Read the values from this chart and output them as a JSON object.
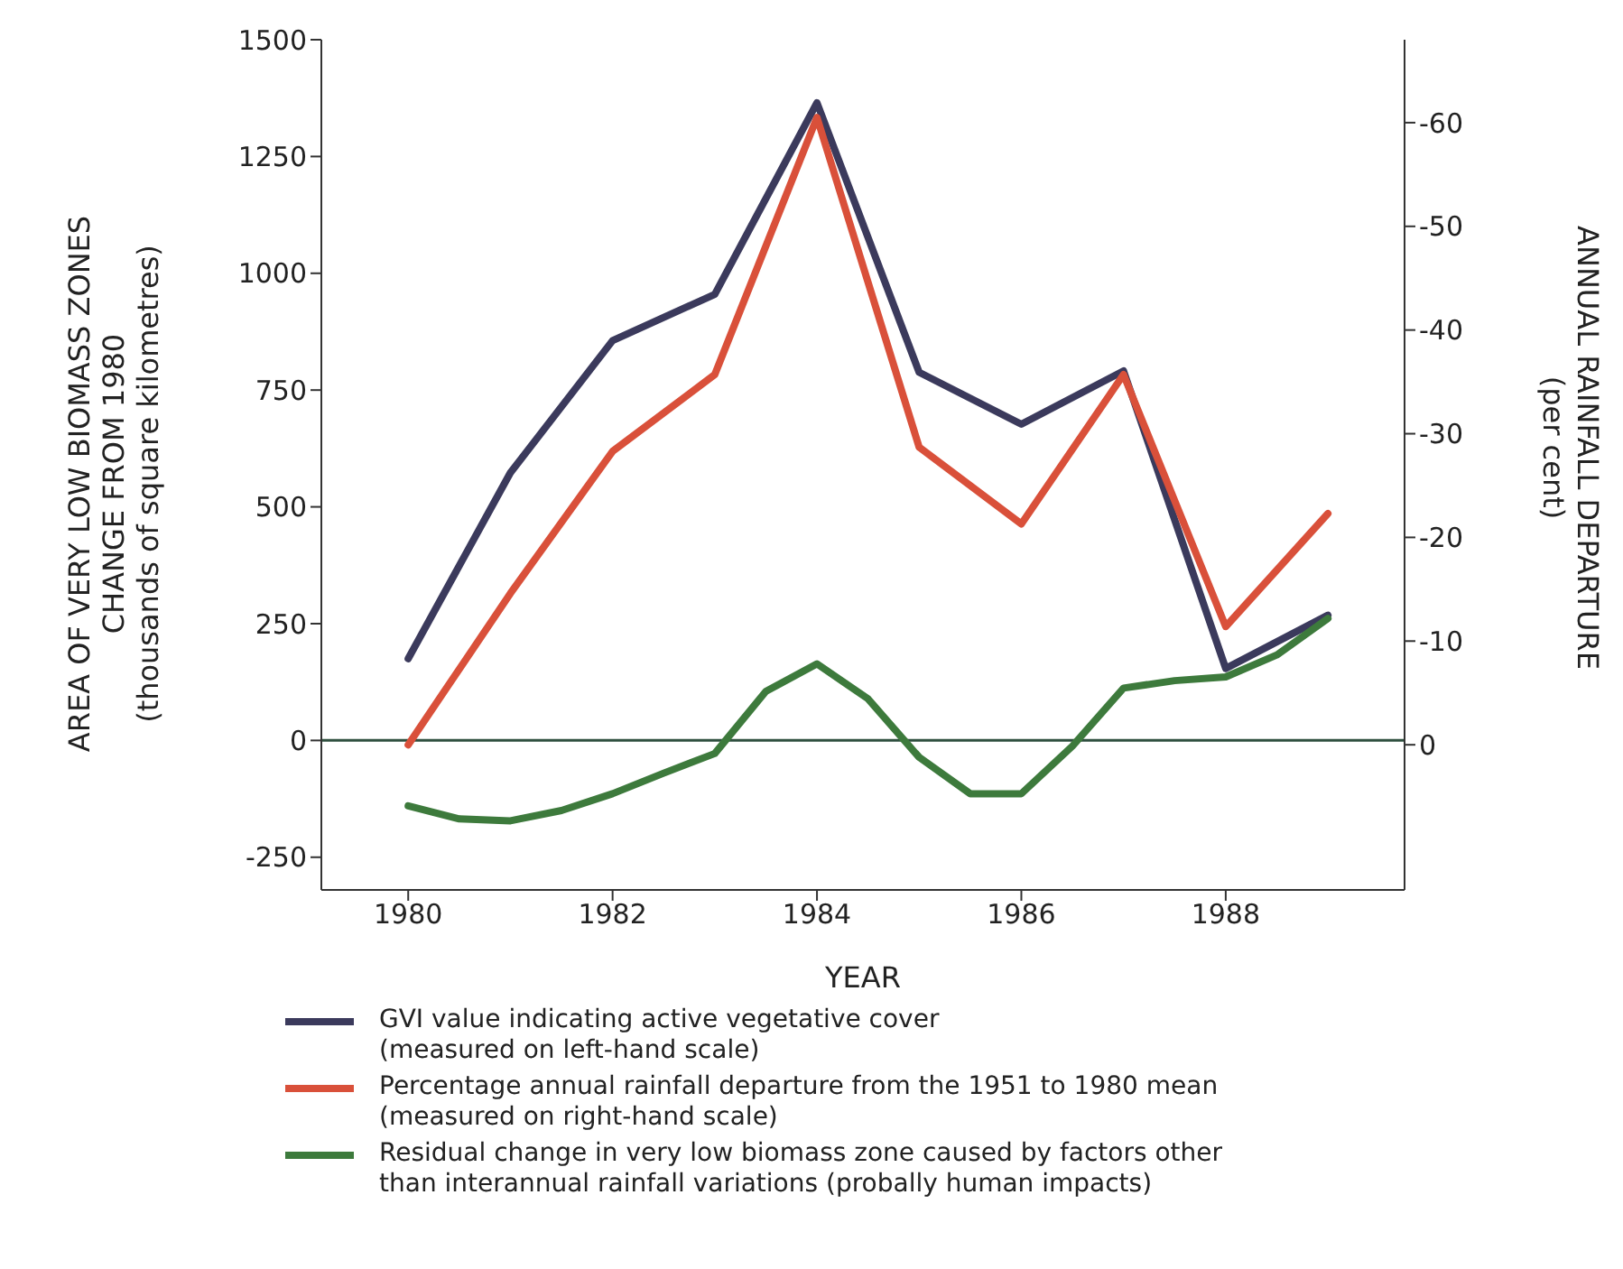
{
  "chart_data": {
    "type": "line",
    "xlabel": "YEAR",
    "ylabel": "AREA OF VERY LOW BIOMASS ZONES\nCHANGE FROM 1980\n(thousands of square kilometres)",
    "y2label": "ANNUAL RAINFALL DEPARTURE\n(per cent)",
    "x": [
      1980,
      1981,
      1982,
      1983,
      1984,
      1985,
      1986,
      1987,
      1988,
      1989
    ],
    "xlim": [
      1979.15,
      1989.75
    ],
    "xticks": [
      1980,
      1982,
      1984,
      1986,
      1988
    ],
    "ylim": [
      -320,
      1500
    ],
    "yticks": [
      -250,
      0,
      250,
      500,
      750,
      1000,
      1250,
      1500
    ],
    "y2lim": [
      14,
      -68
    ],
    "y2ticks": [
      0,
      -10,
      -20,
      -30,
      -40,
      -50,
      -60
    ],
    "series": [
      {
        "name": "GVI value indicating active vegetative cover\n(measured on left-hand scale)",
        "color": "#3b3a5c",
        "values": [
          175,
          573,
          856,
          955,
          1365,
          788,
          677,
          791,
          154,
          268
        ]
      },
      {
        "name": "Percentage annual rainfall departure from the 1951 to 1980 mean\n(measured on right-hand scale)",
        "color": "#d9503a",
        "axis": "y2",
        "values": [
          0,
          -14.6,
          -28.3,
          -35.7,
          -60.5,
          -28.7,
          -21.3,
          -35.7,
          -11.4,
          -22.3
        ]
      },
      {
        "name": "Residual change in very low biomass zone caused by factors other\nthan interannual rainfall variations (probally human impacts)",
        "color": "#3d7a3c",
        "x": [
          1980,
          1980.5,
          1981,
          1981.5,
          1982,
          1982.5,
          1983,
          1983.5,
          1984,
          1984.5,
          1985,
          1985.5,
          1986,
          1986.5,
          1987,
          1987.5,
          1988,
          1988.5,
          1989
        ],
        "values": [
          -140,
          -168,
          -172,
          -150,
          -114,
          -70,
          -28,
          105,
          164,
          89,
          -36,
          -114,
          -114,
          -12,
          112,
          128,
          136,
          183,
          261
        ]
      }
    ],
    "ref_lines": [
      {
        "axis": "y",
        "value": 0,
        "color": "#2f4f3f"
      }
    ],
    "grid": false,
    "legend": "bottom",
    "marker": "none",
    "line_style": "solid"
  }
}
